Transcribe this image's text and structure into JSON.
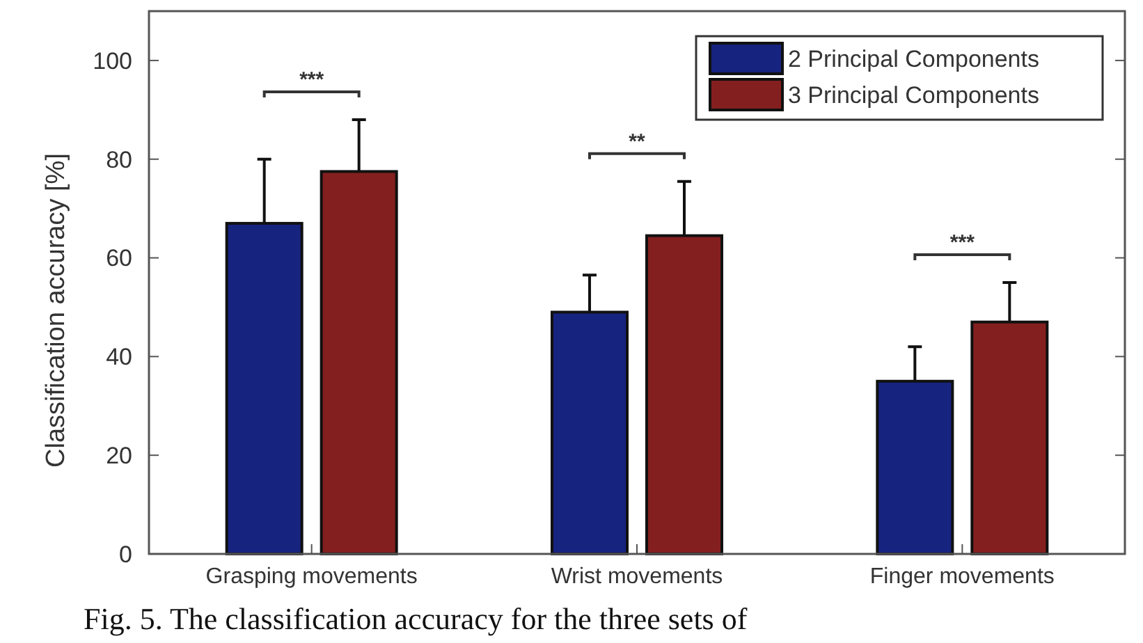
{
  "chart_data": {
    "type": "bar",
    "ylabel": "Classification accuracy [%]",
    "categories": [
      "Grasping movements",
      "Wrist movements",
      "Finger movements"
    ],
    "series": [
      {
        "name": "2 Principal Components",
        "color": "#16237f",
        "values": [
          67,
          49,
          35
        ],
        "errors": [
          [
            67,
            80
          ],
          [
            49,
            56.5
          ],
          [
            35,
            42
          ]
        ]
      },
      {
        "name": "3 Principal Components",
        "color": "#841f1f",
        "values": [
          77.5,
          64.5,
          47
        ],
        "errors": [
          [
            77.5,
            88
          ],
          [
            64.5,
            75.5
          ],
          [
            47,
            55
          ]
        ]
      }
    ],
    "ylim": [
      0,
      110
    ],
    "yticks": [
      0,
      20,
      40,
      60,
      80,
      100
    ],
    "grid": false,
    "legend": "top right",
    "annotations": [
      "***",
      "**",
      "***",
      "Fig. 5. The classification accuracy for the three sets of"
    ]
  }
}
